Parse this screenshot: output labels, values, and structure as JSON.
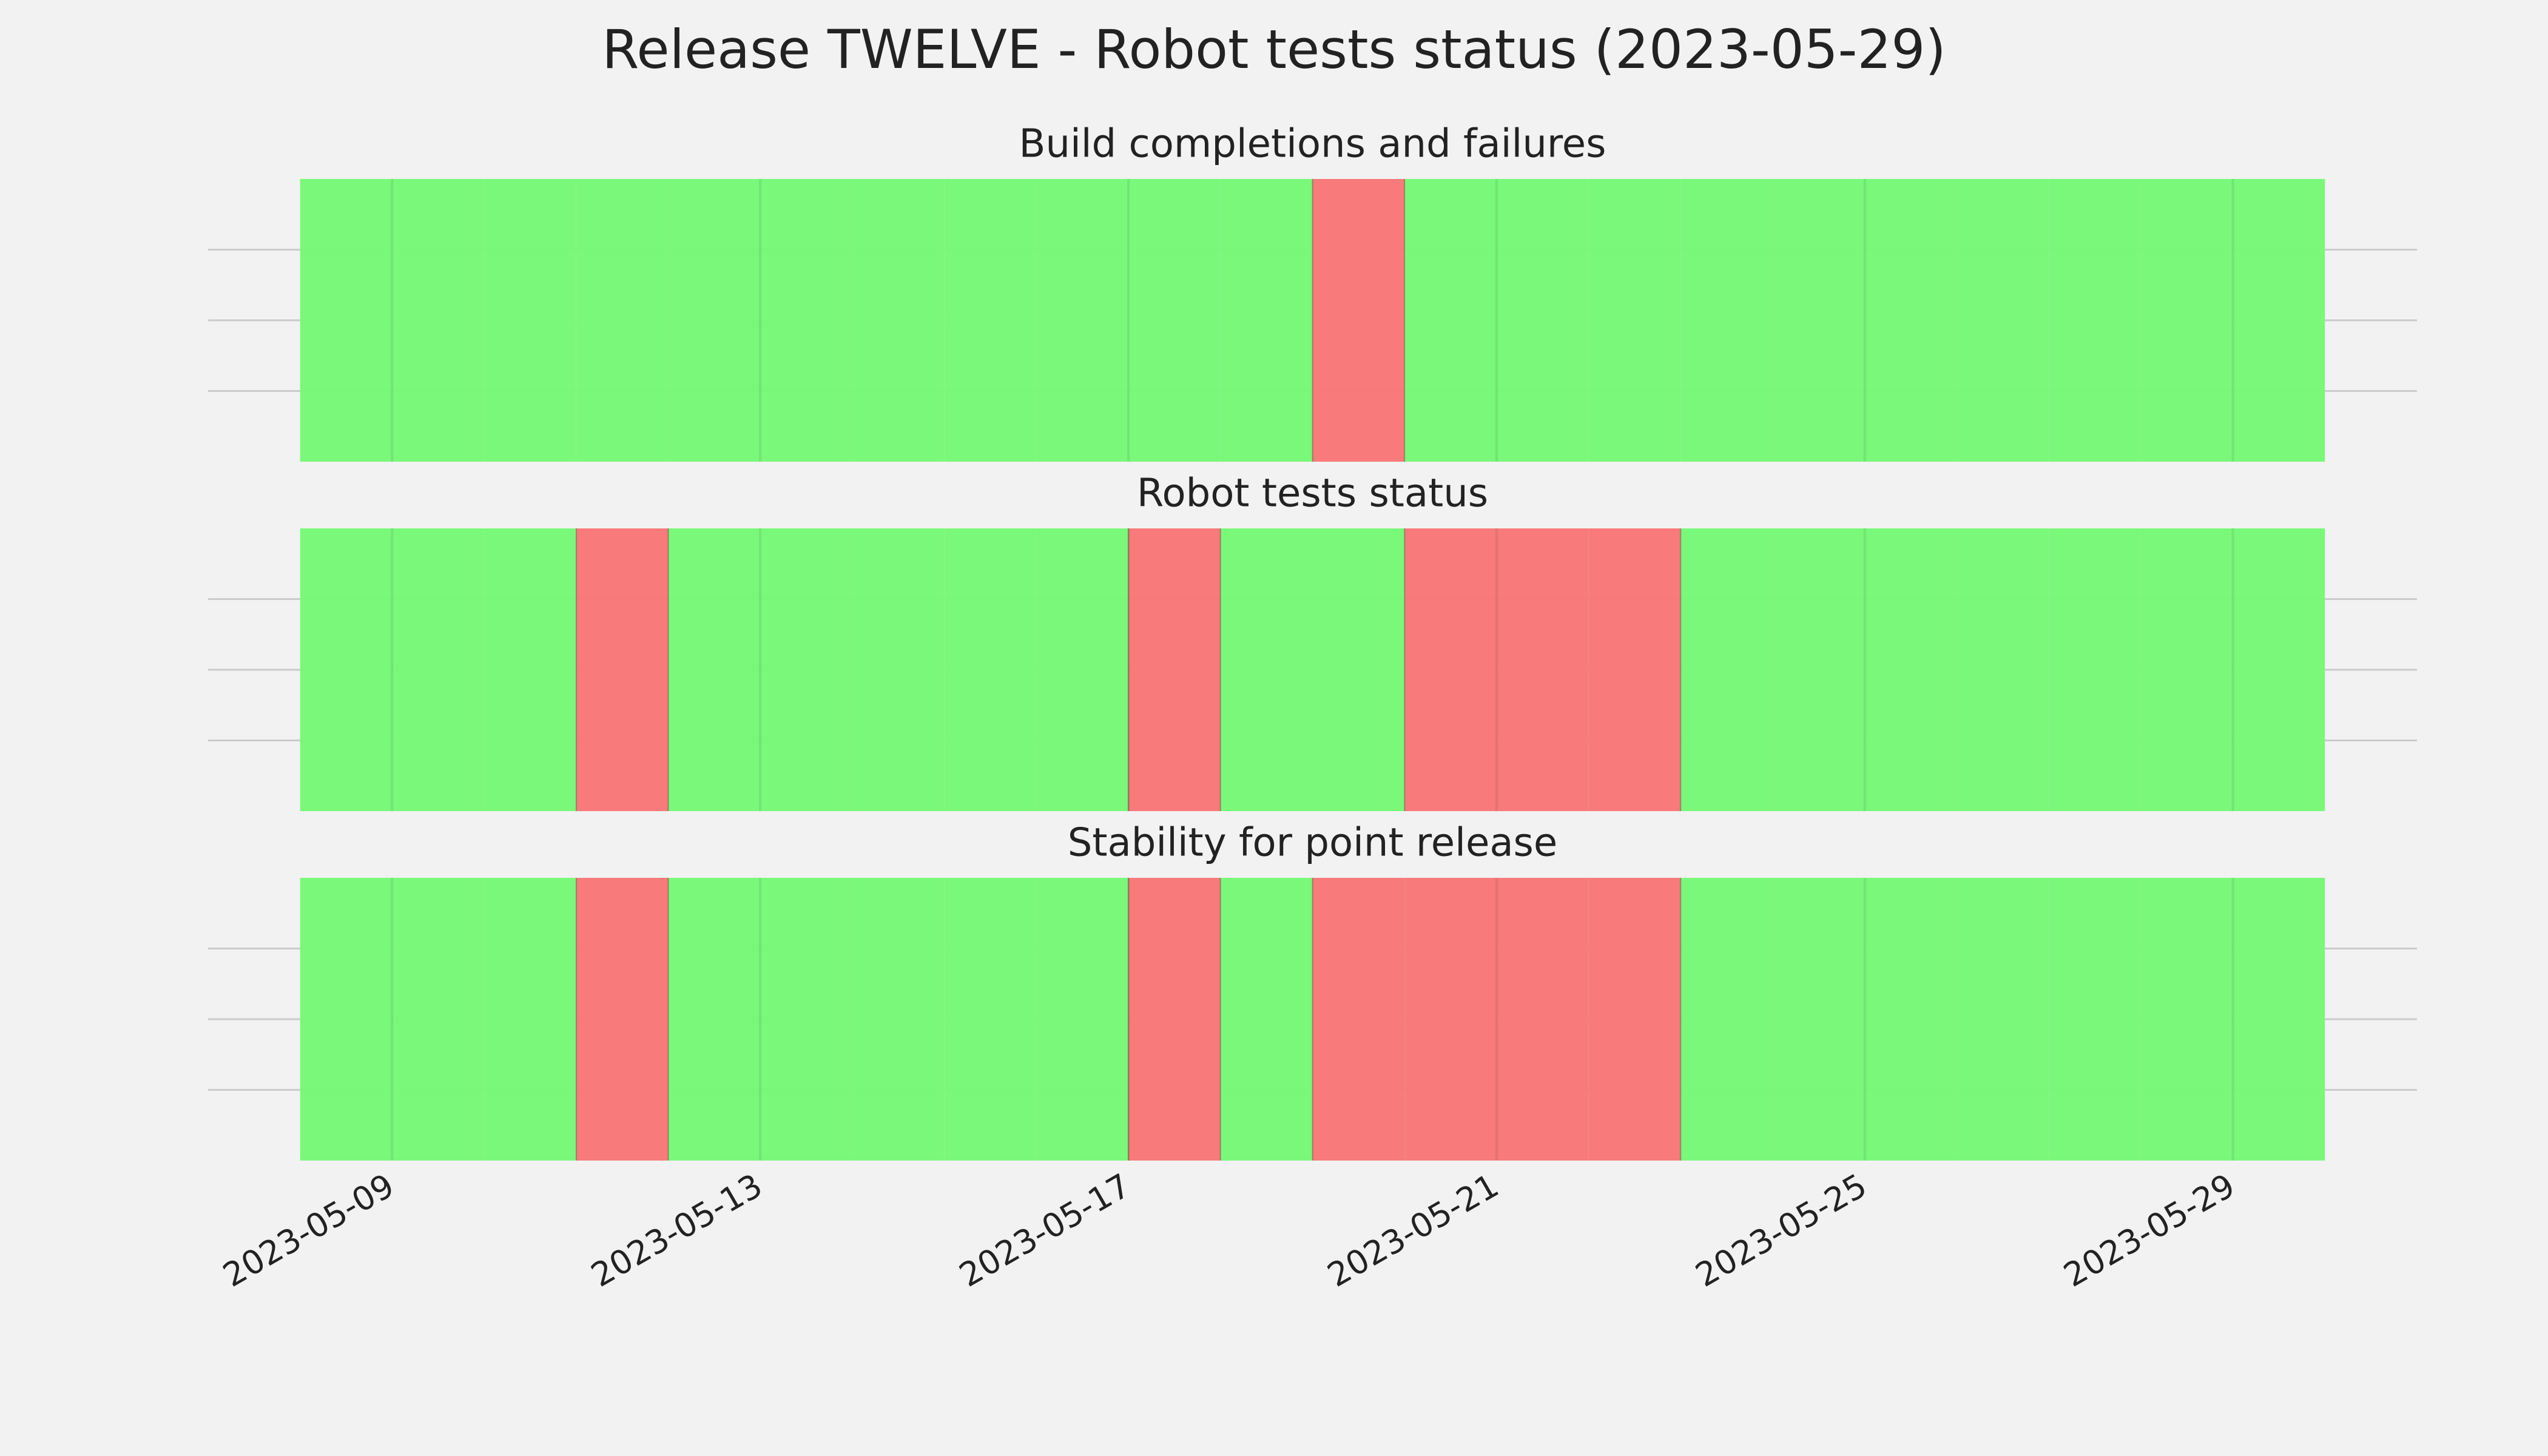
{
  "title": "Release TWELVE - Robot tests status (2023-05-29)",
  "chart_data": [
    {
      "type": "timeline",
      "title": "Build completions and failures",
      "x": [
        "2023-05-08",
        "2023-05-09",
        "2023-05-10",
        "2023-05-11",
        "2023-05-12",
        "2023-05-13",
        "2023-05-14",
        "2023-05-15",
        "2023-05-16",
        "2023-05-17",
        "2023-05-18",
        "2023-05-19",
        "2023-05-20",
        "2023-05-21",
        "2023-05-22",
        "2023-05-23",
        "2023-05-24",
        "2023-05-25",
        "2023-05-26",
        "2023-05-27",
        "2023-05-28",
        "2023-05-29"
      ],
      "values": [
        1,
        1,
        1,
        1,
        1,
        1,
        1,
        1,
        1,
        1,
        1,
        0,
        1,
        1,
        1,
        1,
        1,
        1,
        1,
        1,
        1,
        1
      ],
      "colors": [
        "#f87777",
        "#77f877"
      ],
      "xlim": [
        "2023-05-07",
        "2023-05-31"
      ],
      "xticks": [
        "2023-05-09",
        "2023-05-13",
        "2023-05-17",
        "2023-05-21",
        "2023-05-25",
        "2023-05-29"
      ],
      "ylim": [
        0,
        1
      ],
      "yticks": [
        0.25,
        0.5,
        0.75
      ],
      "grid": true
    },
    {
      "type": "timeline",
      "title": "Robot tests status",
      "x": [
        "2023-05-08",
        "2023-05-09",
        "2023-05-10",
        "2023-05-11",
        "2023-05-12",
        "2023-05-13",
        "2023-05-14",
        "2023-05-15",
        "2023-05-16",
        "2023-05-17",
        "2023-05-18",
        "2023-05-19",
        "2023-05-20",
        "2023-05-21",
        "2023-05-22",
        "2023-05-23",
        "2023-05-24",
        "2023-05-25",
        "2023-05-26",
        "2023-05-27",
        "2023-05-28",
        "2023-05-29"
      ],
      "values": [
        1,
        1,
        1,
        0,
        1,
        1,
        1,
        1,
        1,
        0,
        1,
        1,
        0,
        0,
        0,
        1,
        1,
        1,
        1,
        1,
        1,
        1
      ],
      "colors": [
        "#f87777",
        "#77f877"
      ],
      "xlim": [
        "2023-05-07",
        "2023-05-31"
      ],
      "xticks": [
        "2023-05-09",
        "2023-05-13",
        "2023-05-17",
        "2023-05-21",
        "2023-05-25",
        "2023-05-29"
      ],
      "ylim": [
        0,
        1
      ],
      "yticks": [
        0.25,
        0.5,
        0.75
      ],
      "grid": true
    },
    {
      "type": "timeline",
      "title": "Stability for point release",
      "x": [
        "2023-05-08",
        "2023-05-09",
        "2023-05-10",
        "2023-05-11",
        "2023-05-12",
        "2023-05-13",
        "2023-05-14",
        "2023-05-15",
        "2023-05-16",
        "2023-05-17",
        "2023-05-18",
        "2023-05-19",
        "2023-05-20",
        "2023-05-21",
        "2023-05-22",
        "2023-05-23",
        "2023-05-24",
        "2023-05-25",
        "2023-05-26",
        "2023-05-27",
        "2023-05-28",
        "2023-05-29"
      ],
      "values": [
        1,
        1,
        1,
        0,
        1,
        1,
        1,
        1,
        1,
        0,
        1,
        0,
        0,
        0,
        0,
        1,
        1,
        1,
        1,
        1,
        1,
        1
      ],
      "colors": [
        "#f87777",
        "#77f877"
      ],
      "xlim": [
        "2023-05-07",
        "2023-05-31"
      ],
      "xticks": [
        "2023-05-09",
        "2023-05-13",
        "2023-05-17",
        "2023-05-21",
        "2023-05-25",
        "2023-05-29"
      ],
      "ylim": [
        0,
        1
      ],
      "yticks": [
        0.25,
        0.5,
        0.75
      ],
      "grid": true
    }
  ]
}
